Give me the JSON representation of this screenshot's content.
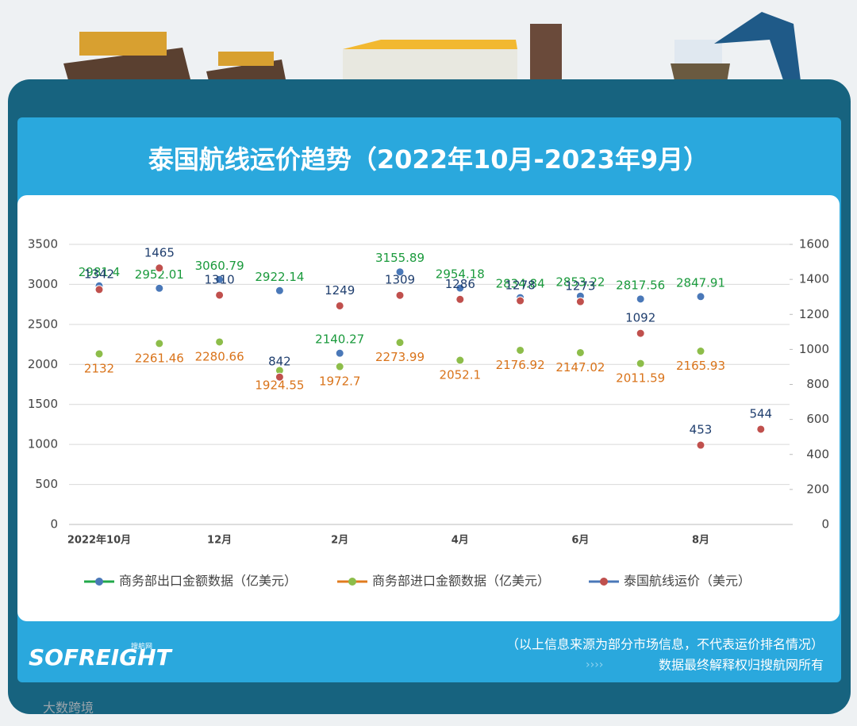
{
  "chart_data": {
    "type": "line",
    "title": "泰国航线运价趋势（2022年10月-2023年9月）",
    "categories": [
      "2022年10月",
      null,
      "12月",
      null,
      "2月",
      null,
      "4月",
      null,
      "6月",
      null,
      "8月",
      null
    ],
    "series": [
      {
        "name": "商务部出口金额数据（亿美元）",
        "color": "#22a84a",
        "marker_color": "#4a78b8",
        "label_color": "#1a9a3c",
        "values": [
          2981.4,
          2952.01,
          3060.79,
          2922.14,
          2140.27,
          3155.89,
          2954.18,
          2834.84,
          2853.22,
          2817.56,
          2847.91,
          null
        ]
      },
      {
        "name": "商务部进口金额数据（亿美元）",
        "color": "#e07b1f",
        "marker_color": "#8dbd4a",
        "label_color": "#d9731a",
        "values": [
          2132,
          2261.46,
          2280.66,
          1924.55,
          1972.7,
          2273.99,
          2052.1,
          2176.92,
          2147.02,
          2011.59,
          2165.93,
          null
        ]
      },
      {
        "name": "泰国航线运价（美元）",
        "color": "#4a78b8",
        "marker_color": "#c0504d",
        "label_color": "#1f3e6e",
        "axis": "y2",
        "values": [
          1342,
          1465,
          1310,
          842,
          1249,
          1309,
          1286,
          1278,
          1273,
          1092,
          453,
          544
        ]
      }
    ],
    "ylim": [
      0,
      3500
    ],
    "yticks": [
      0,
      500,
      1000,
      1500,
      2000,
      2500,
      3000,
      3500
    ],
    "y2lim": [
      0,
      1600
    ],
    "y2ticks": [
      0,
      200,
      400,
      600,
      800,
      1000,
      1200,
      1400,
      1600
    ],
    "grid": true,
    "legend": "bottom"
  },
  "footer": {
    "note": "（以上信息来源为部分市场信息，不代表运价排名情况）",
    "rights": "数据最终解释权归搜航网所有",
    "logo": "SOFREIGHT",
    "logo_sub": "搜航网",
    "watermark": "大数跨境"
  }
}
